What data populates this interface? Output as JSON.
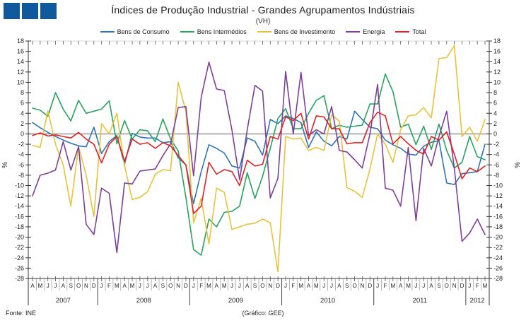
{
  "logo": {
    "square_count": 3,
    "color": "#10599c"
  },
  "footer": {
    "source": "Fonte: INE",
    "credit": "(Gráfico: GEE)"
  },
  "chart_data": {
    "type": "line",
    "title": "Índices de Produção Industrial - Grandes Agrupamentos Indústriais",
    "subtitle": "(VH)",
    "ylabel_left": "%",
    "ylabel_right": "%",
    "ylim": [
      -28,
      18
    ],
    "ytick_step": 2,
    "grid": "zero-line-only",
    "legend_position": "top",
    "axis_color": "#333333",
    "zero_line_color": "#808080",
    "x_months": [
      "A",
      "M",
      "J",
      "J",
      "A",
      "S",
      "O",
      "N",
      "D",
      "J",
      "F",
      "M",
      "A",
      "M",
      "J",
      "J",
      "A",
      "S",
      "O",
      "N",
      "D",
      "J",
      "F",
      "M",
      "A",
      "M",
      "J",
      "J",
      "A",
      "S",
      "O",
      "N",
      "D",
      "J",
      "F",
      "M",
      "A",
      "M",
      "J",
      "J",
      "A",
      "S",
      "O",
      "N",
      "D",
      "J",
      "F",
      "M",
      "A",
      "M",
      "J",
      "J",
      "A",
      "S",
      "O",
      "N",
      "D",
      "J",
      "F",
      "M"
    ],
    "year_groups": [
      {
        "year": "2007",
        "count": 9
      },
      {
        "year": "2008",
        "count": 12
      },
      {
        "year": "2009",
        "count": 12
      },
      {
        "year": "2010",
        "count": 12
      },
      {
        "year": "2011",
        "count": 12
      },
      {
        "year": "2012",
        "count": 3
      }
    ],
    "series": [
      {
        "name": "Bens de Consumo",
        "color": "#2e74b5",
        "values": [
          2.2,
          1.2,
          0.3,
          -0.5,
          -1.2,
          -1.8,
          -2.3,
          -2.5,
          1.3,
          -3.8,
          -1.5,
          -0.3,
          -5.9,
          0.1,
          -0.6,
          -0.8,
          -0.8,
          -1.7,
          -1.5,
          -4.6,
          -6.0,
          -13.5,
          -7.3,
          -2.1,
          -2.8,
          -3.7,
          -6.2,
          -6.6,
          -0.8,
          -1.4,
          -4.1,
          2.8,
          2.0,
          3.5,
          3.0,
          2.2,
          -2.6,
          0.4,
          -1.4,
          -2.3,
          -0.5,
          -1.0,
          4.4,
          2.8,
          1.3,
          1.0,
          -1.2,
          -2.1,
          -2.8,
          -3.9,
          -4.1,
          -2.4,
          -1.6,
          -1.3,
          -9.5,
          -9.8,
          -7.7,
          -7.5,
          -7.3,
          -2.0
        ]
      },
      {
        "name": "Bens Intermédios",
        "color": "#27a35d",
        "values": [
          5.0,
          4.6,
          3.4,
          8.0,
          4.8,
          2.5,
          6.5,
          4.0,
          4.4,
          4.8,
          6.4,
          -1.9,
          2.6,
          -1.0,
          0.8,
          0.6,
          -1.5,
          2.9,
          -1.0,
          -3.3,
          -12.3,
          -22.4,
          -23.5,
          -16.5,
          -18.0,
          -15.2,
          -15.0,
          -14.0,
          -7.5,
          -12.5,
          -8.2,
          -2.8,
          3.0,
          4.9,
          1.0,
          1.0,
          4.0,
          6.5,
          7.4,
          1.0,
          1.7,
          1.3,
          1.5,
          1.7,
          5.8,
          5.8,
          11.6,
          8.2,
          1.3,
          1.9,
          -2.1,
          1.5,
          -3.0,
          1.9,
          -3.2,
          -6.6,
          -5.5,
          -0.5,
          -4.4,
          -5.0
        ]
      },
      {
        "name": "Bens de Investimento",
        "color": "#e9c23d",
        "values": [
          -2.2,
          -2.6,
          4.5,
          -2.0,
          -6.0,
          -14.0,
          -2.5,
          -8.0,
          -16.0,
          2.0,
          0.0,
          4.0,
          -6.2,
          -12.7,
          -12.3,
          -11.2,
          -7.8,
          -6.9,
          -7.1,
          10.0,
          4.4,
          -17.2,
          -12.5,
          -21.3,
          -10.5,
          -11.3,
          -18.5,
          -18.0,
          -17.5,
          -17.3,
          -16.5,
          -17.2,
          -26.7,
          -0.5,
          -1.0,
          -0.8,
          -3.2,
          -2.6,
          -3.2,
          3.7,
          2.5,
          -10.4,
          -11.1,
          -12.3,
          -6.8,
          0.0,
          -2.0,
          -5.5,
          0.8,
          3.5,
          3.7,
          5.1,
          3.1,
          14.6,
          14.8,
          17.1,
          -0.5,
          1.3,
          -1.4,
          2.8
        ]
      },
      {
        "name": "Energia",
        "color": "#7d3f98",
        "values": [
          -12.0,
          -8.0,
          -7.6,
          -7.0,
          -1.5,
          -7.0,
          -2.5,
          -17.5,
          -19.5,
          -10.5,
          -11.5,
          -23.0,
          -9.5,
          -9.7,
          -7.2,
          -7.0,
          -6.8,
          -4.2,
          -1.9,
          5.1,
          5.3,
          -8.1,
          7.1,
          13.9,
          8.7,
          8.4,
          0.8,
          -8.9,
          0.8,
          9.4,
          8.3,
          -12.4,
          -8.6,
          12.1,
          0.0,
          11.9,
          -0.3,
          0.8,
          0.0,
          5.3,
          -3.2,
          -3.5,
          -5.0,
          -6.6,
          0.0,
          9.6,
          -10.5,
          -10.9,
          -14.0,
          -2.6,
          -16.8,
          -2.8,
          -6.2,
          -0.5,
          4.4,
          -6.6,
          -20.8,
          -19.2,
          -16.5,
          -19.5
        ]
      },
      {
        "name": "Total",
        "color": "#dd2423",
        "values": [
          -0.3,
          0.2,
          -0.4,
          -0.2,
          -0.5,
          -0.8,
          0.3,
          -1.0,
          -2.0,
          -5.6,
          -2.0,
          -0.5,
          -5.3,
          -1.0,
          -2.0,
          -1.7,
          -2.8,
          -1.7,
          -2.3,
          -4.2,
          -6.0,
          -15.4,
          -14.0,
          -5.5,
          -7.8,
          -6.9,
          -7.3,
          -10.0,
          -5.1,
          -6.2,
          -5.9,
          -0.5,
          -1.0,
          3.3,
          2.6,
          4.0,
          -1.0,
          3.5,
          3.3,
          1.0,
          1.0,
          -1.9,
          -1.7,
          -1.7,
          2.2,
          4.2,
          3.5,
          -1.9,
          -0.5,
          -1.9,
          -3.2,
          -3.9,
          -0.5,
          -1.2,
          0.4,
          -3.9,
          -8.7,
          -6.6,
          -7.3,
          -6.2
        ]
      }
    ]
  }
}
